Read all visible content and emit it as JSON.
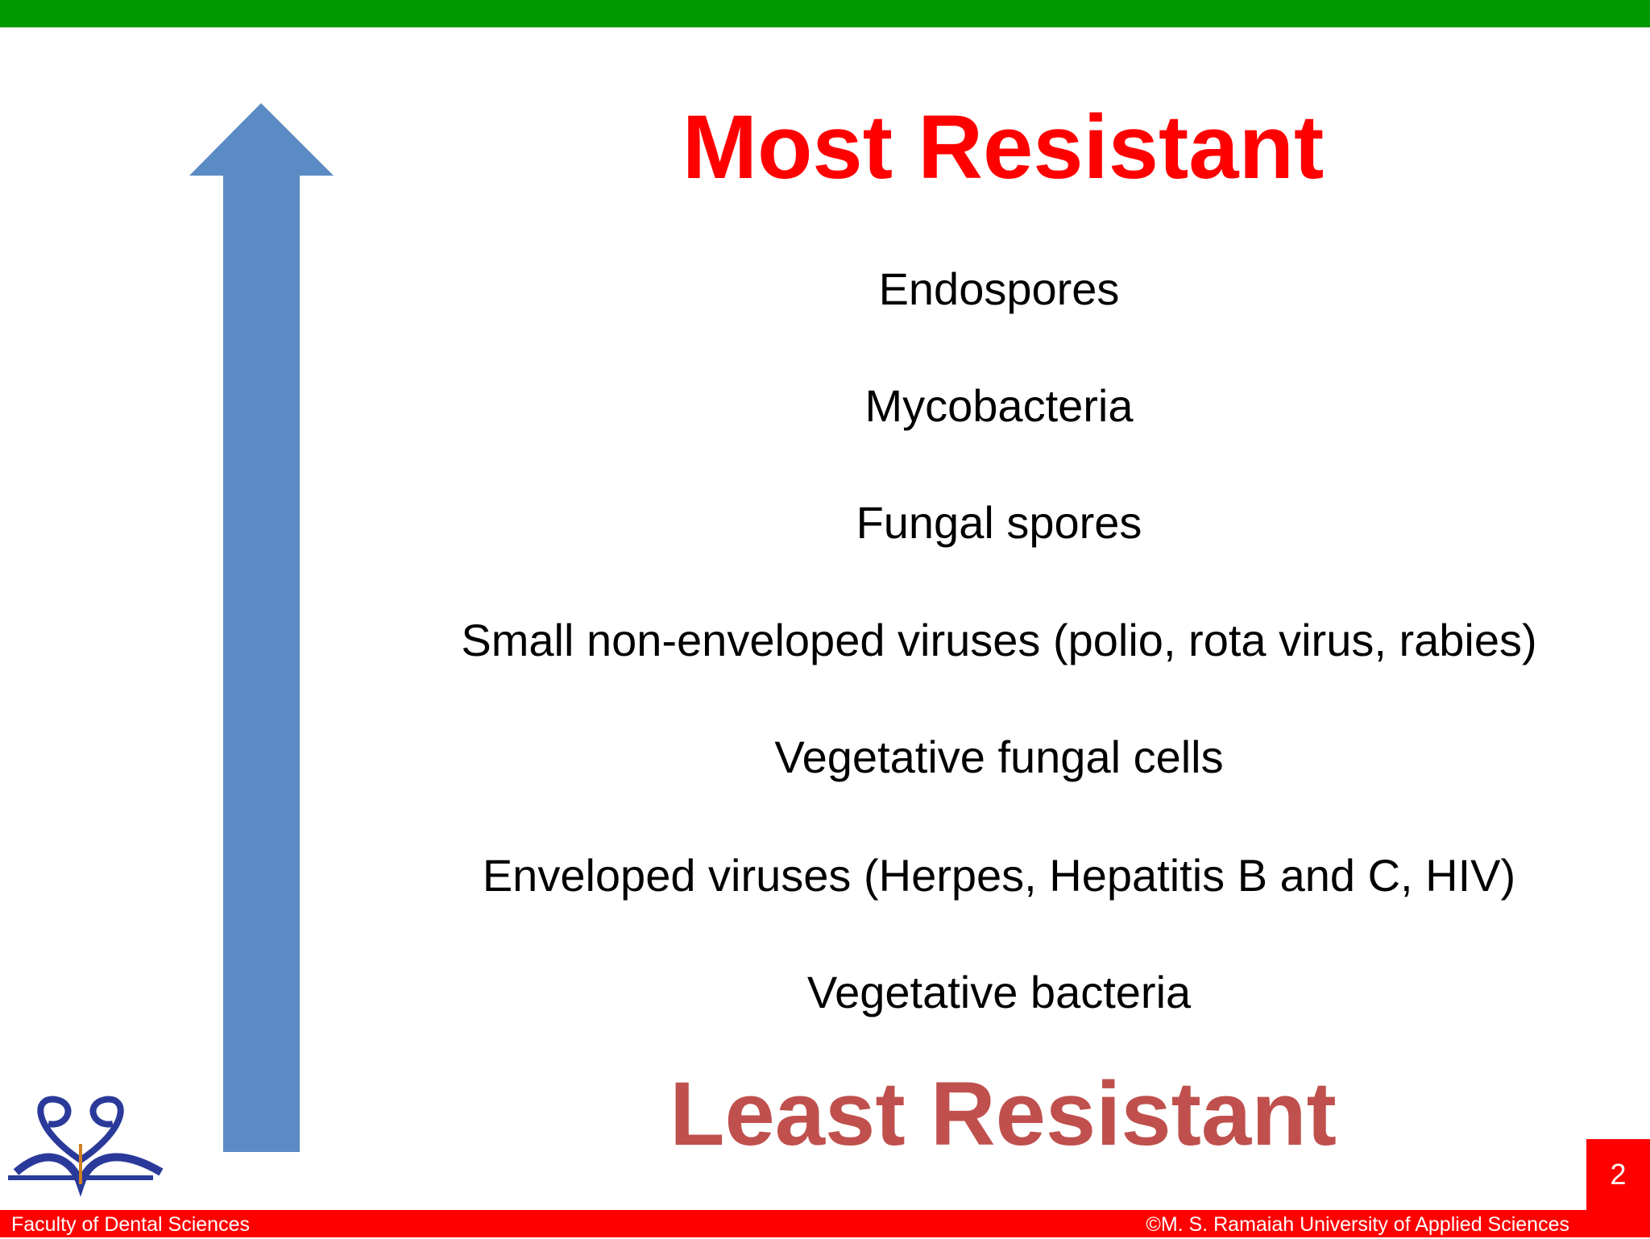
{
  "slide": {
    "top_label": "Most Resistant",
    "items": [
      "Endospores",
      "Mycobacteria",
      "Fungal spores",
      "Small non-enveloped viruses (polio, rota virus, rabies)",
      "Vegetative fungal cells",
      "Enveloped viruses (Herpes, Hepatitis B and C, HIV)",
      "Vegetative bacteria"
    ],
    "bottom_label": "Least Resistant",
    "page_number": "2"
  },
  "footer": {
    "left": "Faculty of Dental Sciences",
    "right": "©M. S. Ramaiah University of Applied Sciences"
  }
}
